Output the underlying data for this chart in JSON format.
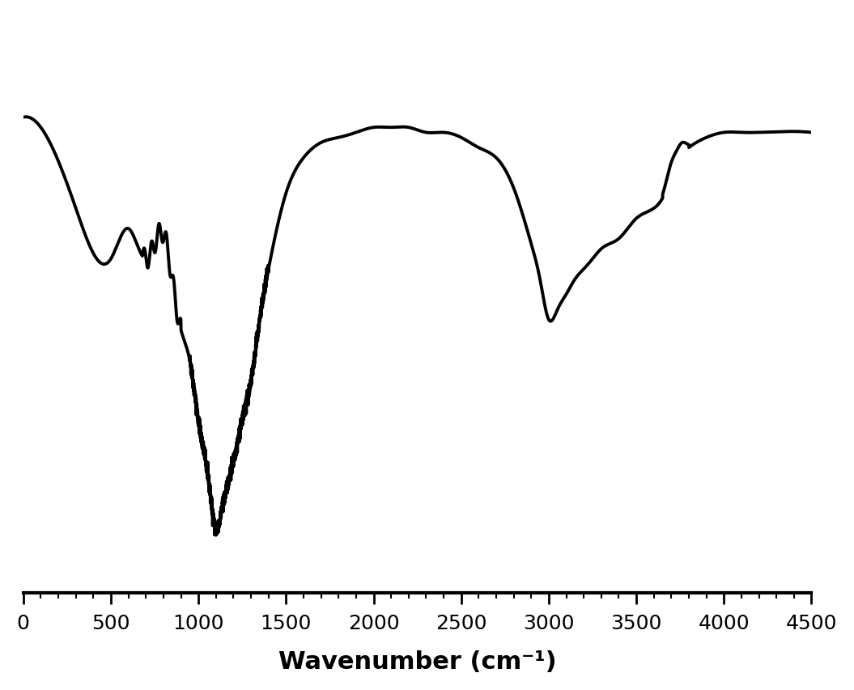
{
  "xlim": [
    0,
    4500
  ],
  "xlabel": "Wavenumber (cm⁻¹)",
  "xlabel_fontsize": 22,
  "tick_fontsize": 18,
  "line_color": "#000000",
  "line_width": 2.8,
  "background_color": "#ffffff",
  "xticks": [
    0,
    500,
    1000,
    1500,
    2000,
    2500,
    3000,
    3500,
    4000,
    4500
  ]
}
